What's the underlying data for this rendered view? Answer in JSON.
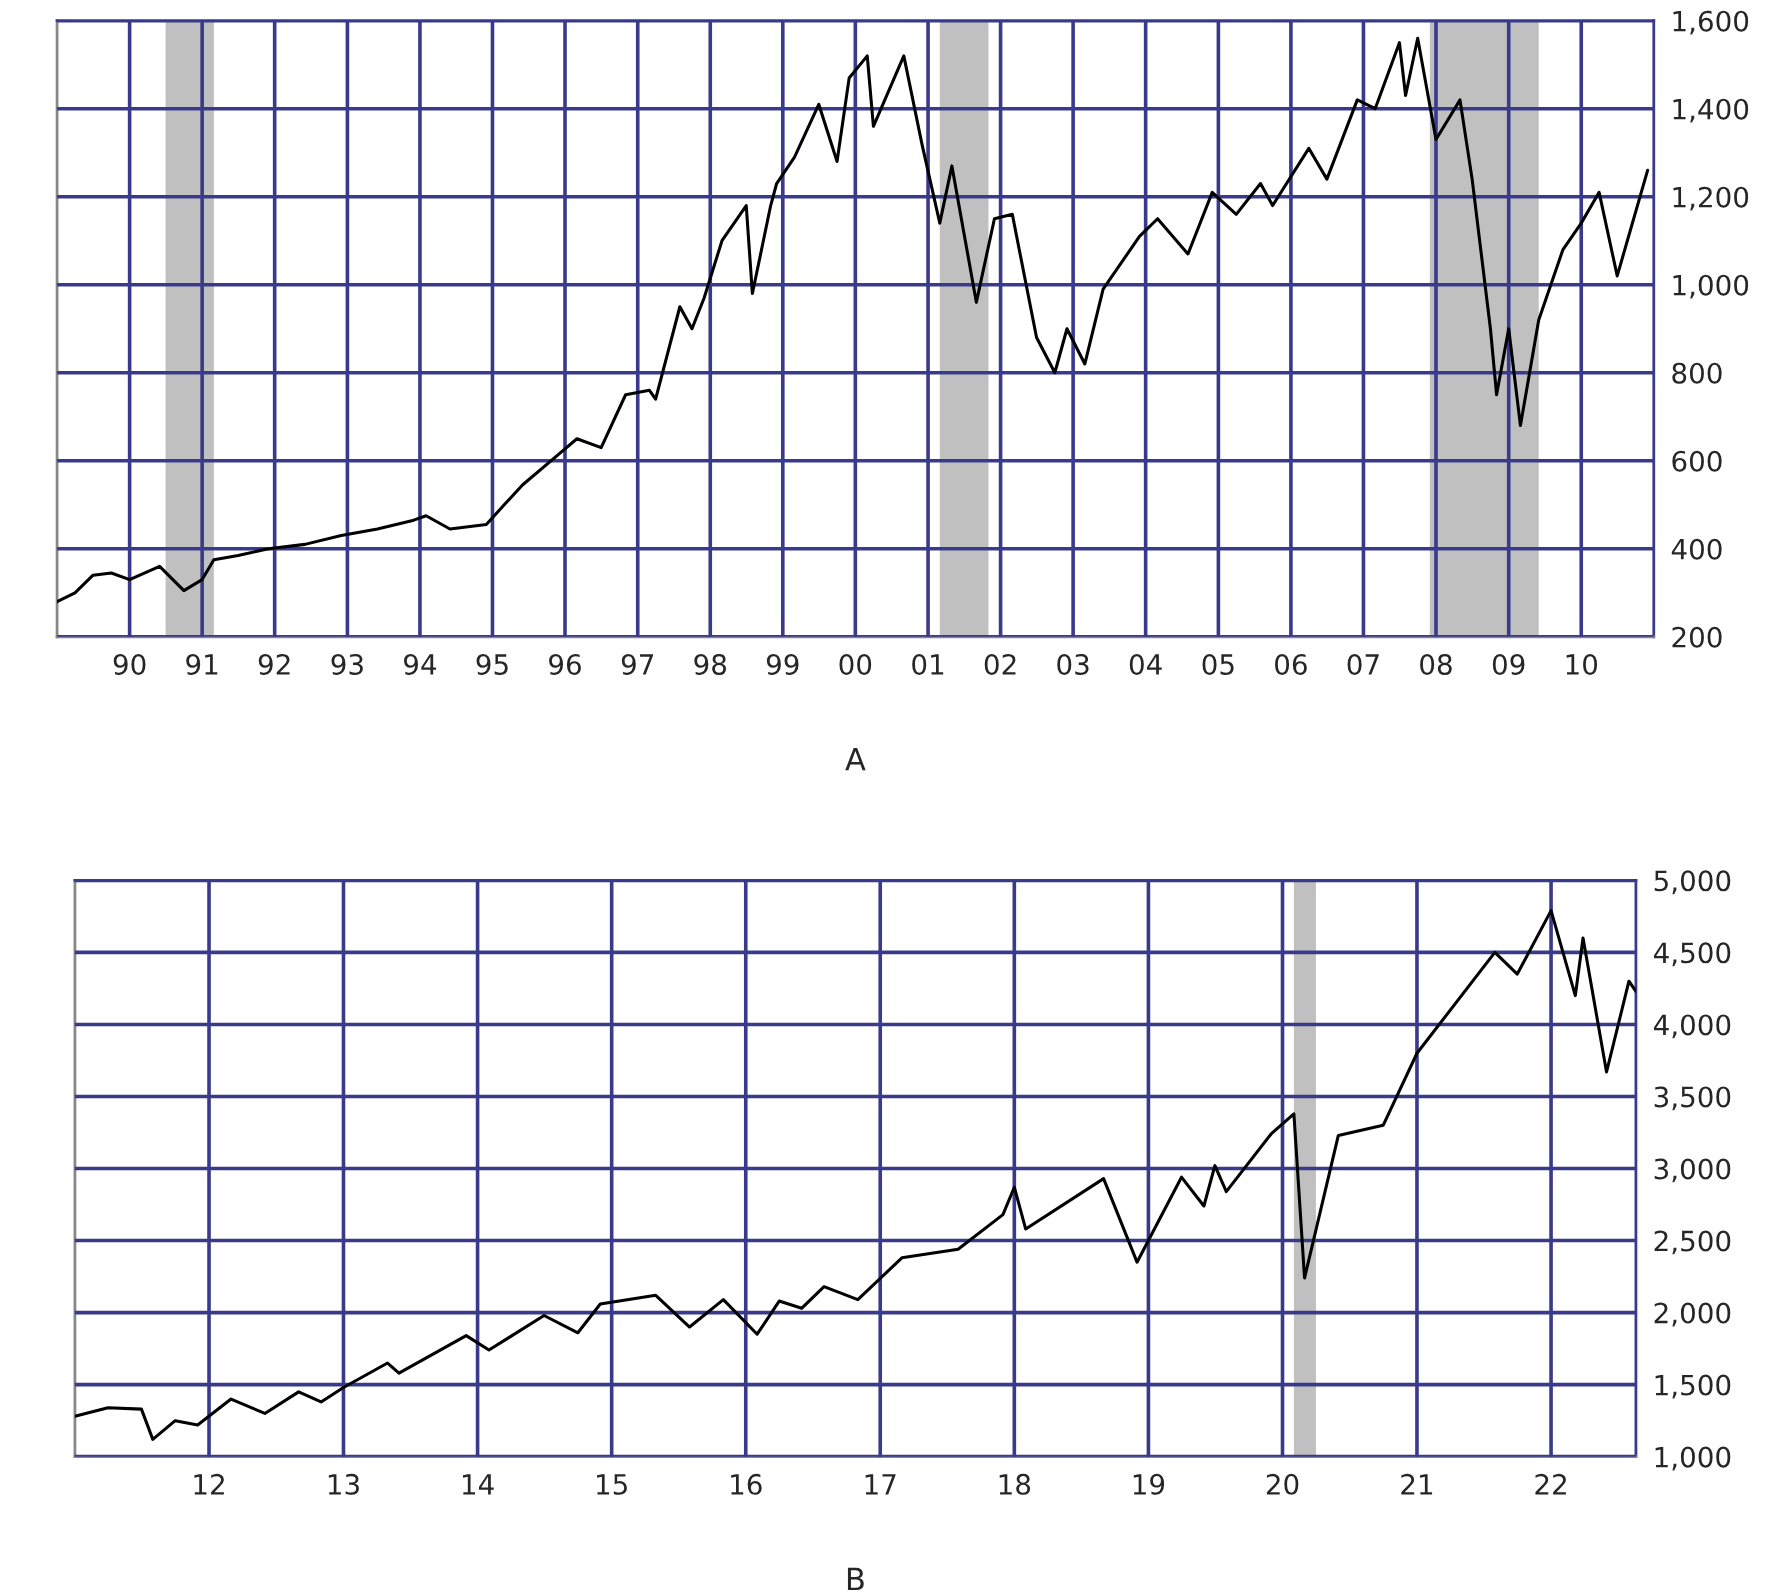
{
  "chart_data": [
    {
      "type": "line",
      "xlabel": "A",
      "x": [
        "1989-01",
        "1989-04",
        "1989-07",
        "1989-10",
        "1990-01",
        "1990-06",
        "1990-10",
        "1991-01",
        "1991-03",
        "1991-07",
        "1991-12",
        "1992-06",
        "1992-12",
        "1993-06",
        "1993-12",
        "1994-02",
        "1994-06",
        "1994-12",
        "1995-03",
        "1995-06",
        "1995-12",
        "1996-03",
        "1996-07",
        "1996-11",
        "1997-03",
        "1997-04",
        "1997-08",
        "1997-10",
        "1997-12",
        "1998-03",
        "1998-07",
        "1998-08",
        "1998-11",
        "1998-12",
        "1999-03",
        "1999-07",
        "1999-10",
        "1999-12",
        "2000-03",
        "2000-04",
        "2000-09",
        "2000-12",
        "2001-03",
        "2001-05",
        "2001-09",
        "2001-12",
        "2002-03",
        "2002-07",
        "2002-10",
        "2002-12",
        "2003-03",
        "2003-06",
        "2003-12",
        "2004-03",
        "2004-08",
        "2004-12",
        "2005-04",
        "2005-08",
        "2005-10",
        "2006-04",
        "2006-07",
        "2006-12",
        "2007-03",
        "2007-07",
        "2007-08",
        "2007-10",
        "2008-01",
        "2008-05",
        "2008-07",
        "2008-10",
        "2008-11",
        "2009-01",
        "2009-03",
        "2009-06",
        "2009-10",
        "2010-01",
        "2010-04",
        "2010-07",
        "2010-12"
      ],
      "series": [
        {
          "color": "#000000",
          "values": [
            280,
            300,
            340,
            345,
            330,
            360,
            305,
            330,
            375,
            385,
            400,
            410,
            430,
            445,
            465,
            475,
            445,
            455,
            500,
            545,
            615,
            650,
            630,
            750,
            760,
            740,
            950,
            900,
            970,
            1100,
            1180,
            980,
            1180,
            1230,
            1290,
            1410,
            1280,
            1470,
            1520,
            1360,
            1520,
            1320,
            1140,
            1270,
            960,
            1150,
            1160,
            880,
            800,
            900,
            820,
            990,
            1110,
            1150,
            1070,
            1210,
            1160,
            1230,
            1180,
            1310,
            1240,
            1420,
            1400,
            1550,
            1430,
            1560,
            1330,
            1420,
            1240,
            900,
            750,
            900,
            680,
            920,
            1080,
            1140,
            1210,
            1020,
            1260
          ]
        }
      ],
      "xlim": [
        "1989-01-01",
        "2011-01-01"
      ],
      "xticks": [
        {
          "value": "1990",
          "label": "90"
        },
        {
          "value": "1991",
          "label": "91"
        },
        {
          "value": "1992",
          "label": "92"
        },
        {
          "value": "1993",
          "label": "93"
        },
        {
          "value": "1994",
          "label": "94"
        },
        {
          "value": "1995",
          "label": "95"
        },
        {
          "value": "1996",
          "label": "96"
        },
        {
          "value": "1997",
          "label": "97"
        },
        {
          "value": "1998",
          "label": "98"
        },
        {
          "value": "1999",
          "label": "99"
        },
        {
          "value": "2000",
          "label": "00"
        },
        {
          "value": "2001",
          "label": "01"
        },
        {
          "value": "2002",
          "label": "02"
        },
        {
          "value": "2003",
          "label": "03"
        },
        {
          "value": "2004",
          "label": "04"
        },
        {
          "value": "2005",
          "label": "05"
        },
        {
          "value": "2006",
          "label": "06"
        },
        {
          "value": "2007",
          "label": "07"
        },
        {
          "value": "2008",
          "label": "08"
        },
        {
          "value": "2009",
          "label": "09"
        },
        {
          "value": "2010",
          "label": "10"
        }
      ],
      "ylim": [
        200,
        1600
      ],
      "yticks": [
        {
          "value": 200,
          "label": "200"
        },
        {
          "value": 400,
          "label": "400"
        },
        {
          "value": 600,
          "label": "600"
        },
        {
          "value": 800,
          "label": "800"
        },
        {
          "value": 1000,
          "label": "1,000"
        },
        {
          "value": 1200,
          "label": "1,200"
        },
        {
          "value": 1400,
          "label": "1,400"
        },
        {
          "value": 1600,
          "label": "1,600"
        }
      ],
      "bands": [
        {
          "axis": "x",
          "from": "1990-07",
          "to": "1991-03",
          "color": "#c0c0c0"
        },
        {
          "axis": "x",
          "from": "2001-03",
          "to": "2001-11",
          "color": "#c0c0c0"
        },
        {
          "axis": "x",
          "from": "2007-12",
          "to": "2009-06",
          "color": "#c0c0c0"
        }
      ],
      "grid": true,
      "line_style": "solid",
      "marker": "none"
    },
    {
      "type": "line",
      "xlabel": "B",
      "x": [
        "2011-01",
        "2011-04",
        "2011-07",
        "2011-08",
        "2011-10",
        "2011-12",
        "2012-03",
        "2012-06",
        "2012-09",
        "2012-11",
        "2013-01",
        "2013-05",
        "2013-06",
        "2013-12",
        "2014-02",
        "2014-07",
        "2014-10",
        "2014-12",
        "2015-05",
        "2015-08",
        "2015-11",
        "2016-02",
        "2016-04",
        "2016-06",
        "2016-08",
        "2016-11",
        "2017-03",
        "2017-08",
        "2017-12",
        "2018-01",
        "2018-02",
        "2018-09",
        "2018-12",
        "2019-04",
        "2019-06",
        "2019-07",
        "2019-08",
        "2019-12",
        "2020-02",
        "2020-03",
        "2020-06",
        "2020-10",
        "2021-01",
        "2021-08",
        "2021-10",
        "2022-01",
        "2022-03-08",
        "2022-03-29",
        "2022-06",
        "2022-08",
        "2022-08-20"
      ],
      "series": [
        {
          "color": "#000000",
          "values": [
            1280,
            1340,
            1330,
            1120,
            1250,
            1220,
            1400,
            1300,
            1450,
            1380,
            1480,
            1650,
            1580,
            1840,
            1740,
            1980,
            1860,
            2060,
            2120,
            1900,
            2090,
            1850,
            2080,
            2030,
            2180,
            2090,
            2380,
            2440,
            2680,
            2870,
            2580,
            2930,
            2350,
            2940,
            2740,
            3020,
            2840,
            3240,
            3380,
            2240,
            3230,
            3300,
            3800,
            4500,
            4350,
            4790,
            4200,
            4600,
            3670,
            4300,
            4230
          ]
        }
      ],
      "xlim": [
        "2011-01-01",
        "2022-08-20"
      ],
      "xticks": [
        {
          "value": "2012",
          "label": "12"
        },
        {
          "value": "2013",
          "label": "13"
        },
        {
          "value": "2014",
          "label": "14"
        },
        {
          "value": "2015",
          "label": "15"
        },
        {
          "value": "2016",
          "label": "16"
        },
        {
          "value": "2017",
          "label": "17"
        },
        {
          "value": "2018",
          "label": "18"
        },
        {
          "value": "2019",
          "label": "19"
        },
        {
          "value": "2020",
          "label": "20"
        },
        {
          "value": "2021",
          "label": "21"
        },
        {
          "value": "2022",
          "label": "22"
        }
      ],
      "ylim": [
        1000,
        5000
      ],
      "yticks": [
        {
          "value": 1000,
          "label": "1,000"
        },
        {
          "value": 1500,
          "label": "1,500"
        },
        {
          "value": 2000,
          "label": "2,000"
        },
        {
          "value": 2500,
          "label": "2,500"
        },
        {
          "value": 3000,
          "label": "3,000"
        },
        {
          "value": 3500,
          "label": "3,500"
        },
        {
          "value": 4000,
          "label": "4,000"
        },
        {
          "value": 4500,
          "label": "4,500"
        },
        {
          "value": 5000,
          "label": "5,000"
        }
      ],
      "bands": [
        {
          "axis": "x",
          "from": "2020-02",
          "to": "2020-04",
          "color": "#c0c0c0"
        }
      ],
      "grid": true,
      "line_style": "solid",
      "marker": "none"
    }
  ]
}
